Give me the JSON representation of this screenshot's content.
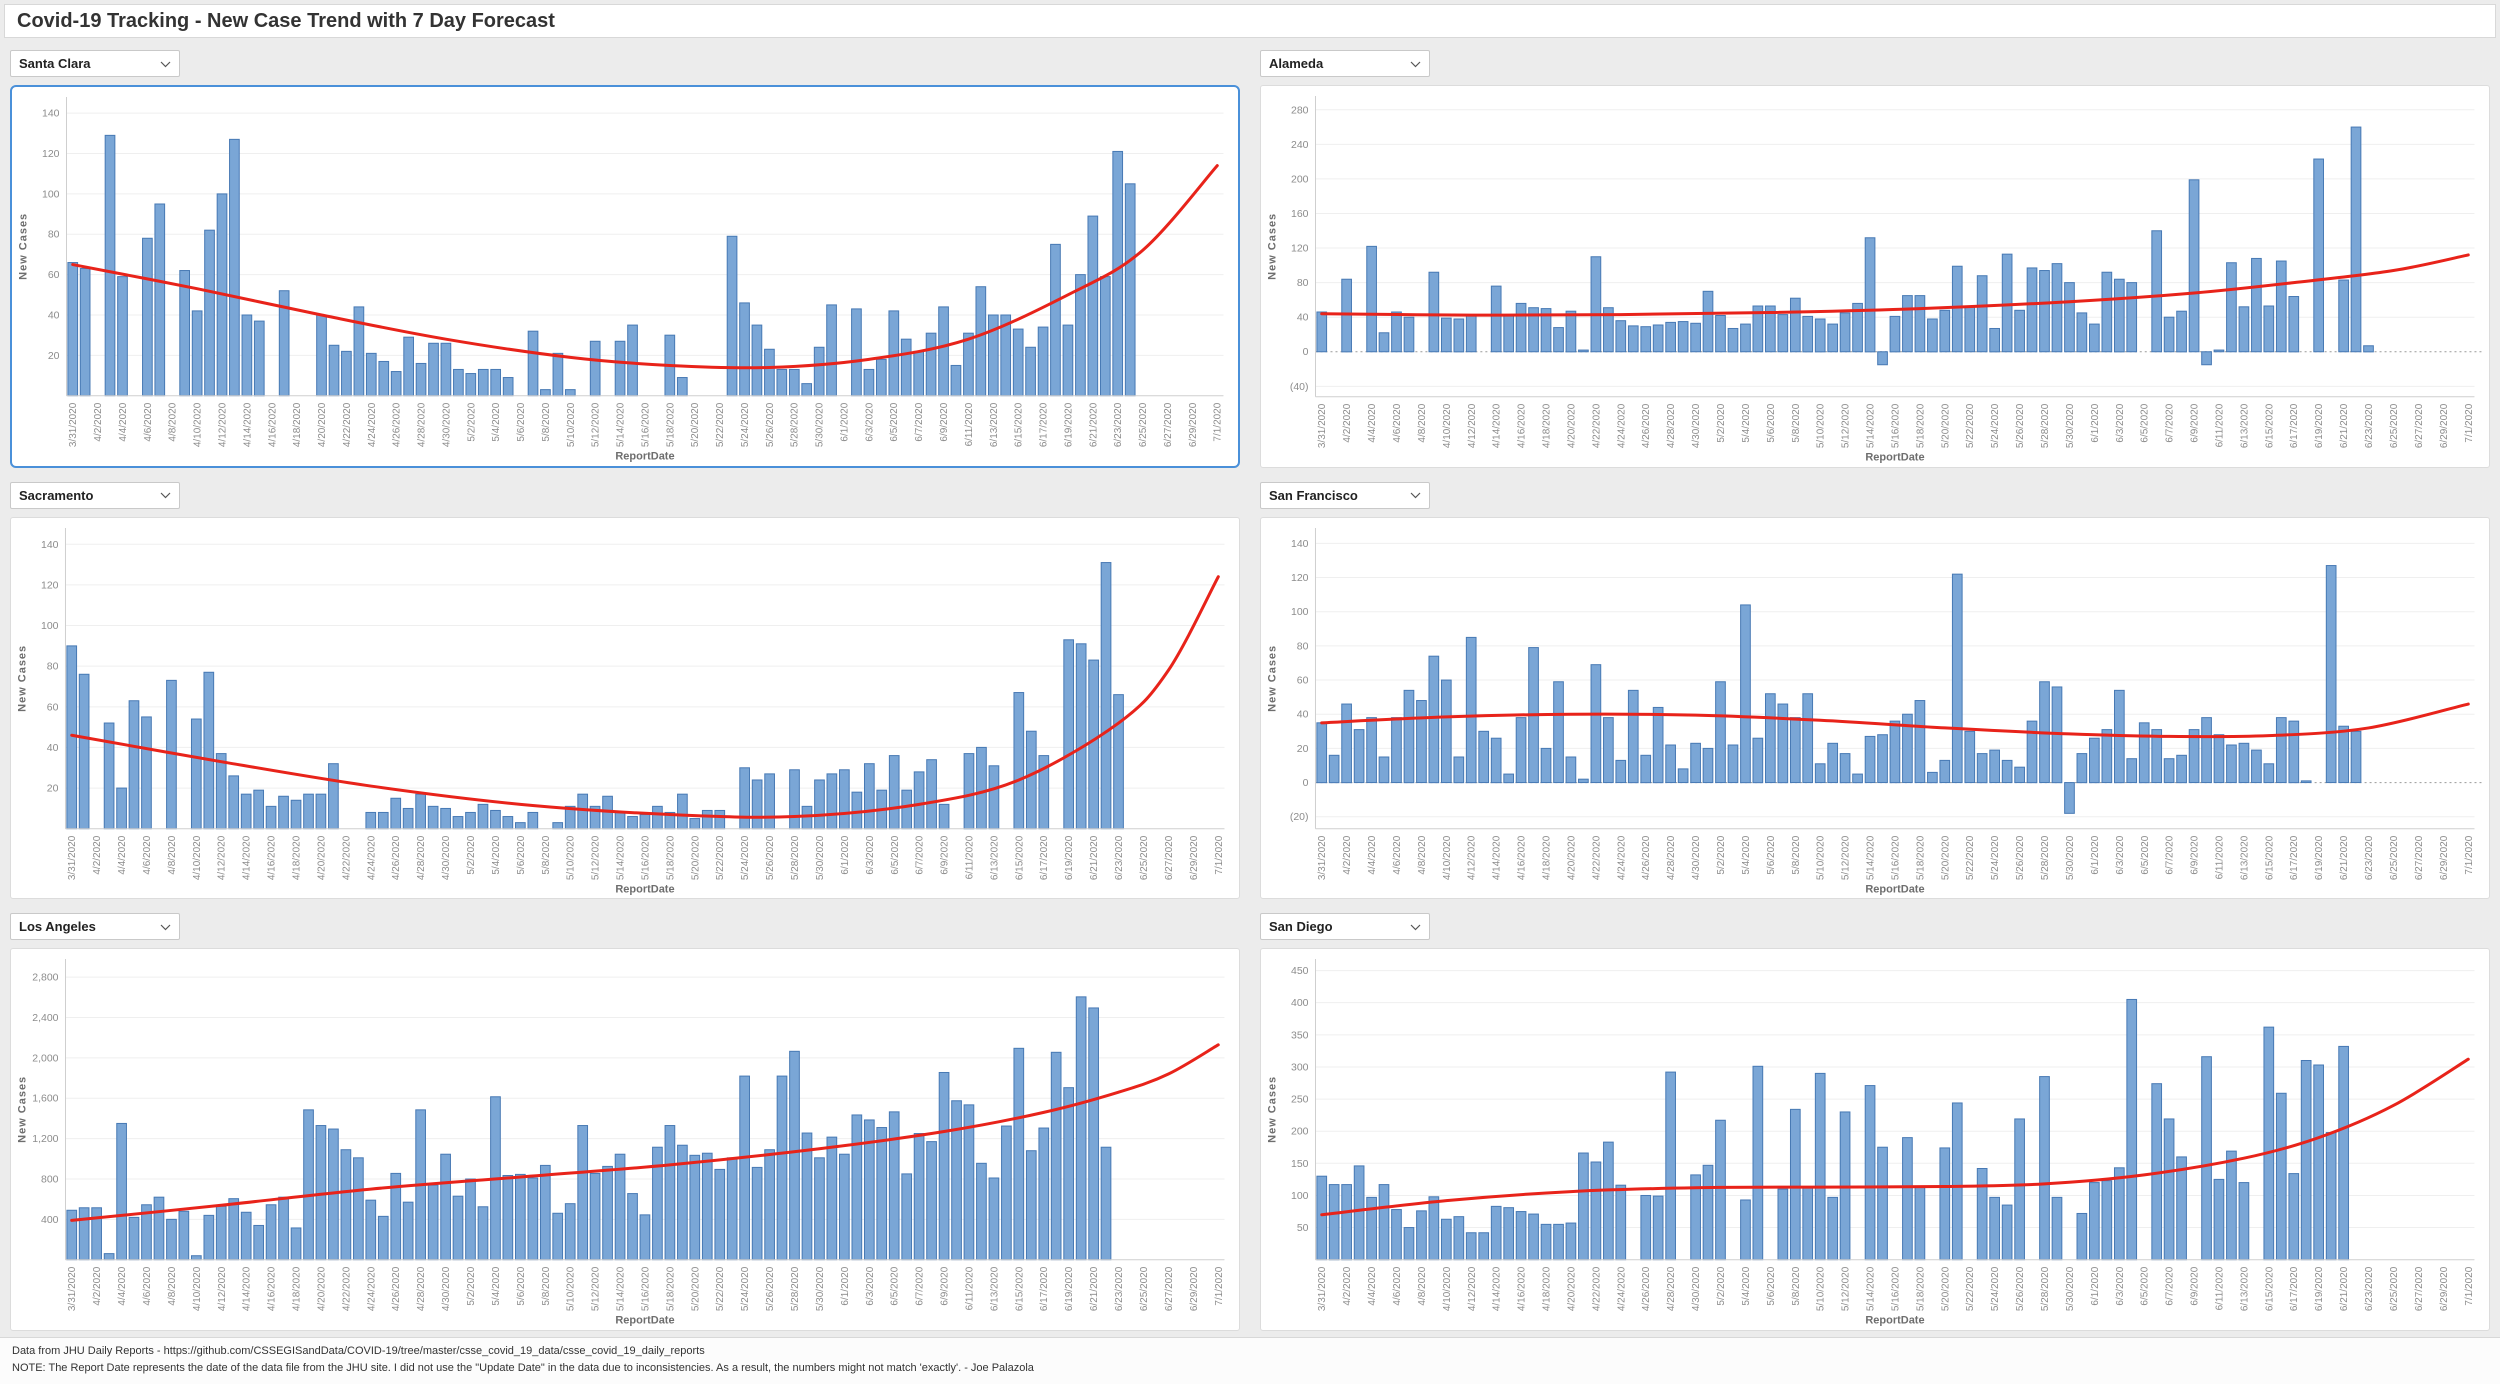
{
  "header": {
    "title": "Covid-19 Tracking - New Case Trend with 7 Day Forecast"
  },
  "axis": {
    "x_title": "ReportDate",
    "y_title": "New Cases"
  },
  "colors": {
    "bar_fill": "#7aa6d6",
    "bar_stroke": "#4779b4",
    "trend": "#e8231a",
    "grid": "#efefef",
    "axis_line": "#cfcfcf",
    "tick_text": "#8c8c8c",
    "axis_title_text": "#6e6e6e",
    "zero_line": "#9a9a9a",
    "selected_border": "#4a90d9"
  },
  "x_tick_labels": [
    "3/31/2020",
    "4/2/2020",
    "4/4/2020",
    "4/6/2020",
    "4/8/2020",
    "4/10/2020",
    "4/12/2020",
    "4/14/2020",
    "4/16/2020",
    "4/18/2020",
    "4/20/2020",
    "4/22/2020",
    "4/24/2020",
    "4/26/2020",
    "4/28/2020",
    "4/30/2020",
    "5/2/2020",
    "5/4/2020",
    "5/6/2020",
    "5/8/2020",
    "5/10/2020",
    "5/12/2020",
    "5/14/2020",
    "5/16/2020",
    "5/18/2020",
    "5/20/2020",
    "5/22/2020",
    "5/24/2020",
    "5/26/2020",
    "5/28/2020",
    "5/30/2020",
    "6/1/2020",
    "6/3/2020",
    "6/5/2020",
    "6/7/2020",
    "6/9/2020",
    "6/11/2020",
    "6/13/2020",
    "6/15/2020",
    "6/17/2020",
    "6/19/2020",
    "6/21/2020",
    "6/23/2020",
    "6/25/2020",
    "6/27/2020",
    "6/29/2020",
    "7/1/2020"
  ],
  "days_total": 93,
  "footer": {
    "line1": "Data from JHU Daily Reports - https://github.com/CSSEGISandData/COVID-19/tree/master/csse_covid_19_data/csse_covid_19_daily_reports",
    "line2": "NOTE: The Report Date represents the date of the data file from the JHU site. I did not use the \"Update Date\" in the data due to inconsistencies. As a result, the numbers might not match 'exactly'. - Joe Palazola"
  },
  "chart_data": [
    {
      "type": "bar",
      "name": "Santa Clara",
      "selected": true,
      "xlabel": "ReportDate",
      "ylabel": "New Cases",
      "y_min": 0,
      "y_max": 148,
      "zero_line": false,
      "y_ticks": [
        140,
        120,
        100,
        80,
        60,
        40,
        20
      ],
      "y_tick_labels": [
        "140",
        "120",
        "100",
        "80",
        "60",
        "40",
        "20"
      ],
      "values": [
        66,
        63,
        null,
        129,
        59,
        null,
        78,
        95,
        null,
        62,
        42,
        82,
        100,
        127,
        40,
        37,
        null,
        52,
        null,
        null,
        40,
        25,
        22,
        44,
        21,
        17,
        12,
        29,
        16,
        26,
        26,
        13,
        11,
        13,
        13,
        9,
        null,
        32,
        3,
        21,
        3,
        null,
        27,
        null,
        27,
        35,
        null,
        null,
        30,
        9,
        null,
        null,
        null,
        79,
        46,
        35,
        23,
        13,
        13,
        6,
        24,
        45,
        null,
        43,
        13,
        18,
        42,
        28,
        22,
        31,
        44,
        15,
        31,
        54,
        40,
        40,
        33,
        24,
        34,
        75,
        35,
        60,
        89,
        59,
        121,
        105
      ],
      "trend": [
        [
          0,
          65
        ],
        [
          10,
          53
        ],
        [
          20,
          40
        ],
        [
          30,
          28
        ],
        [
          40,
          19
        ],
        [
          48,
          15
        ],
        [
          56,
          14
        ],
        [
          64,
          18
        ],
        [
          72,
          28
        ],
        [
          80,
          50
        ],
        [
          86,
          72
        ],
        [
          92,
          114
        ]
      ]
    },
    {
      "type": "bar",
      "name": "Alameda",
      "selected": false,
      "xlabel": "ReportDate",
      "ylabel": "New Cases",
      "y_min": -52,
      "y_max": 296,
      "zero_line": true,
      "y_ticks": [
        280,
        240,
        200,
        160,
        120,
        80,
        40,
        0,
        -40
      ],
      "y_tick_labels": [
        "280",
        "240",
        "200",
        "160",
        "120",
        "80",
        "40",
        "0",
        "(40)"
      ],
      "values": [
        46,
        null,
        84,
        null,
        122,
        22,
        46,
        40,
        null,
        92,
        39,
        38,
        42,
        null,
        76,
        42,
        56,
        51,
        50,
        28,
        47,
        2,
        110,
        51,
        36,
        30,
        29,
        31,
        34,
        35,
        33,
        70,
        42,
        27,
        32,
        53,
        53,
        43,
        62,
        41,
        38,
        32,
        45,
        56,
        132,
        -15,
        41,
        65,
        65,
        38,
        48,
        99,
        52,
        88,
        27,
        113,
        48,
        97,
        94,
        102,
        80,
        45,
        32,
        92,
        84,
        80,
        null,
        140,
        40,
        47,
        199,
        -15,
        2,
        103,
        52,
        108,
        53,
        105,
        64,
        null,
        223,
        null,
        83,
        260,
        7,
        null
      ],
      "trend": [
        [
          0,
          44
        ],
        [
          12,
          42.5
        ],
        [
          24,
          43
        ],
        [
          36,
          45.5
        ],
        [
          48,
          50
        ],
        [
          60,
          58
        ],
        [
          70,
          68
        ],
        [
          78,
          80
        ],
        [
          86,
          94
        ],
        [
          92,
          112
        ]
      ]
    },
    {
      "type": "bar",
      "name": "Sacramento",
      "selected": false,
      "xlabel": "ReportDate",
      "ylabel": "New Cases",
      "y_min": 0,
      "y_max": 148,
      "zero_line": false,
      "y_ticks": [
        140,
        120,
        100,
        80,
        60,
        40,
        20
      ],
      "y_tick_labels": [
        "140",
        "120",
        "100",
        "80",
        "60",
        "40",
        "20"
      ],
      "values": [
        90,
        76,
        null,
        52,
        20,
        63,
        55,
        null,
        73,
        null,
        54,
        77,
        37,
        26,
        17,
        19,
        11,
        16,
        14,
        17,
        17,
        32,
        null,
        null,
        8,
        8,
        15,
        10,
        17,
        11,
        10,
        6,
        8,
        12,
        9,
        6,
        3,
        8,
        null,
        3,
        11,
        17,
        11,
        16,
        8,
        6,
        7,
        11,
        8,
        17,
        5,
        9,
        9,
        null,
        30,
        24,
        27,
        null,
        29,
        11,
        24,
        27,
        29,
        18,
        32,
        19,
        36,
        19,
        28,
        34,
        12,
        null,
        37,
        40,
        31,
        null,
        67,
        48,
        36,
        null,
        93,
        91,
        83,
        131,
        66,
        null
      ],
      "trend": [
        [
          0,
          46
        ],
        [
          12,
          33
        ],
        [
          24,
          21
        ],
        [
          36,
          12
        ],
        [
          48,
          7
        ],
        [
          58,
          6
        ],
        [
          68,
          12
        ],
        [
          76,
          24
        ],
        [
          84,
          52
        ],
        [
          88,
          78
        ],
        [
          92,
          124
        ]
      ]
    },
    {
      "type": "bar",
      "name": "San Francisco",
      "selected": false,
      "xlabel": "ReportDate",
      "ylabel": "New Cases",
      "y_min": -27,
      "y_max": 149,
      "zero_line": true,
      "y_ticks": [
        140,
        120,
        100,
        80,
        60,
        40,
        20,
        0,
        -20
      ],
      "y_tick_labels": [
        "140",
        "120",
        "100",
        "80",
        "60",
        "40",
        "20",
        "0",
        "(20)"
      ],
      "values": [
        35,
        16,
        46,
        31,
        38,
        15,
        38,
        54,
        48,
        74,
        60,
        15,
        85,
        30,
        26,
        5,
        38,
        79,
        20,
        59,
        15,
        2,
        69,
        38,
        13,
        54,
        16,
        44,
        22,
        8,
        23,
        20,
        59,
        22,
        104,
        26,
        52,
        46,
        38,
        52,
        11,
        23,
        17,
        5,
        27,
        28,
        36,
        40,
        48,
        6,
        13,
        122,
        30,
        17,
        19,
        13,
        9,
        36,
        59,
        56,
        -18,
        17,
        26,
        31,
        54,
        14,
        35,
        31,
        14,
        16,
        31,
        38,
        28,
        22,
        23,
        19,
        11,
        38,
        36,
        1,
        null,
        127,
        33,
        30,
        null,
        null
      ],
      "trend": [
        [
          0,
          35
        ],
        [
          10,
          38.5
        ],
        [
          20,
          40
        ],
        [
          30,
          39.5
        ],
        [
          40,
          36.5
        ],
        [
          50,
          32
        ],
        [
          60,
          28.5
        ],
        [
          68,
          27
        ],
        [
          76,
          27.5
        ],
        [
          84,
          32
        ],
        [
          92,
          46
        ]
      ]
    },
    {
      "type": "bar",
      "name": "Los Angeles",
      "selected": false,
      "xlabel": "ReportDate",
      "ylabel": "New Cases",
      "y_min": 0,
      "y_max": 2980,
      "zero_line": false,
      "y_ticks": [
        2800,
        2400,
        2000,
        1600,
        1200,
        800,
        400
      ],
      "y_tick_labels": [
        "2,800",
        "2,400",
        "2,000",
        "1,600",
        "1,200",
        "800",
        "400"
      ],
      "values": [
        490,
        515,
        515,
        60,
        1350,
        420,
        545,
        620,
        400,
        480,
        40,
        440,
        530,
        605,
        470,
        340,
        545,
        620,
        315,
        1485,
        1330,
        1295,
        1090,
        1010,
        590,
        430,
        855,
        570,
        1485,
        740,
        1045,
        630,
        800,
        525,
        1615,
        835,
        845,
        810,
        935,
        460,
        555,
        1330,
        855,
        925,
        1045,
        655,
        445,
        1115,
        1330,
        1135,
        1035,
        1055,
        895,
        1010,
        1820,
        915,
        1090,
        1820,
        2065,
        1255,
        1010,
        1215,
        1045,
        1435,
        1385,
        1310,
        1465,
        850,
        1250,
        1170,
        1855,
        1575,
        1535,
        955,
        810,
        1325,
        2095,
        1080,
        1305,
        2055,
        1705,
        2605,
        2495,
        1115,
        null,
        null
      ],
      "trend": [
        [
          0,
          390
        ],
        [
          12,
          540
        ],
        [
          24,
          700
        ],
        [
          36,
          820
        ],
        [
          48,
          940
        ],
        [
          60,
          1100
        ],
        [
          70,
          1270
        ],
        [
          78,
          1460
        ],
        [
          84,
          1660
        ],
        [
          88,
          1840
        ],
        [
          92,
          2130
        ]
      ]
    },
    {
      "type": "bar",
      "name": "San Diego",
      "selected": false,
      "xlabel": "ReportDate",
      "ylabel": "New Cases",
      "y_min": 0,
      "y_max": 468,
      "zero_line": false,
      "y_ticks": [
        450,
        400,
        350,
        300,
        250,
        200,
        150,
        100,
        50
      ],
      "y_tick_labels": [
        "450",
        "400",
        "350",
        "300",
        "250",
        "200",
        "150",
        "100",
        "50"
      ],
      "values": [
        130,
        117,
        117,
        146,
        97,
        117,
        78,
        50,
        76,
        98,
        63,
        67,
        42,
        42,
        83,
        81,
        75,
        71,
        55,
        55,
        57,
        166,
        152,
        183,
        116,
        null,
        100,
        99,
        292,
        null,
        132,
        147,
        217,
        null,
        93,
        301,
        null,
        110,
        234,
        113,
        290,
        97,
        230,
        null,
        271,
        175,
        null,
        190,
        113,
        null,
        174,
        244,
        null,
        142,
        97,
        85,
        219,
        null,
        285,
        97,
        null,
        72,
        120,
        123,
        143,
        405,
        null,
        274,
        219,
        160,
        null,
        316,
        125,
        169,
        120,
        null,
        362,
        259,
        134,
        310,
        303,
        198,
        332,
        null,
        null,
        null
      ],
      "trend": [
        [
          0,
          70
        ],
        [
          10,
          92
        ],
        [
          20,
          106
        ],
        [
          30,
          112
        ],
        [
          40,
          113
        ],
        [
          50,
          114
        ],
        [
          58,
          118
        ],
        [
          66,
          132
        ],
        [
          74,
          158
        ],
        [
          80,
          190
        ],
        [
          86,
          240
        ],
        [
          92,
          312
        ]
      ]
    }
  ]
}
